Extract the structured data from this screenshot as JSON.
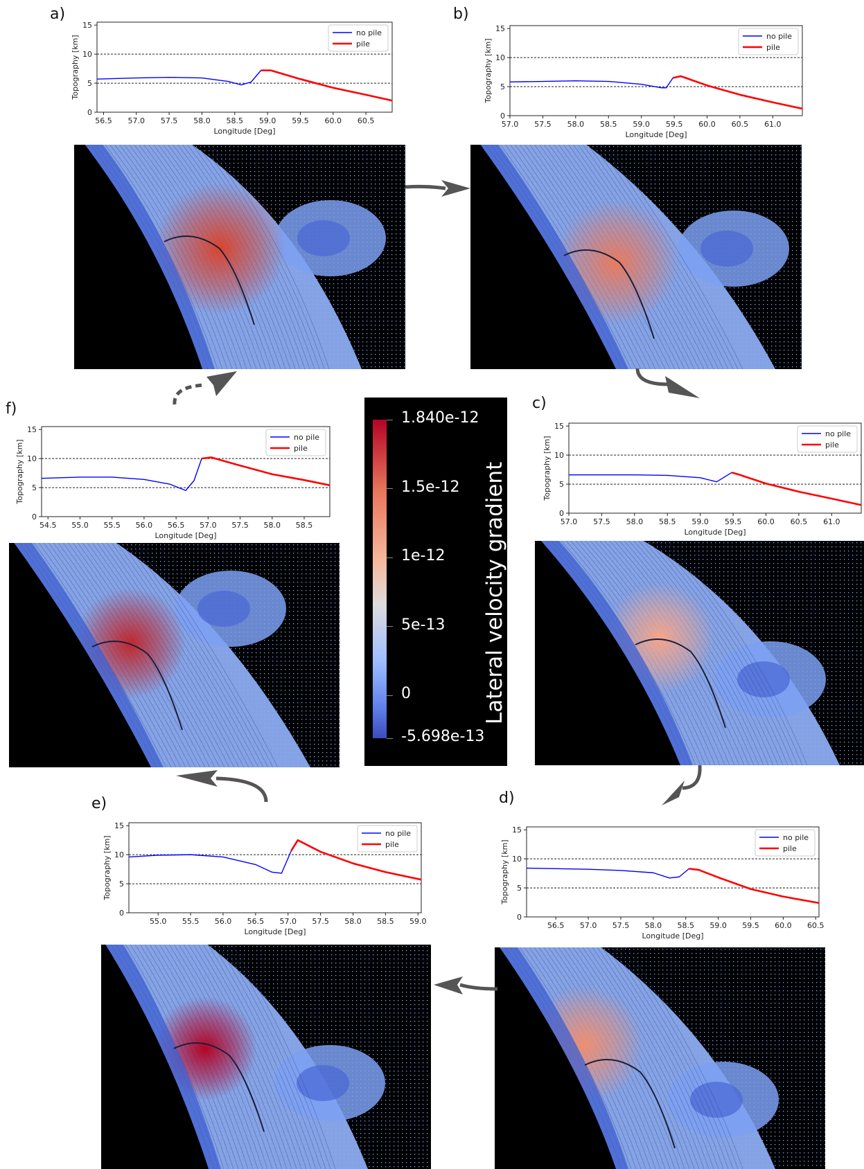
{
  "panel_letters": {
    "a": "a)",
    "b": "b)",
    "c": "c)",
    "d": "d)",
    "e": "e)",
    "f": "f)"
  },
  "colorbar": {
    "title": "Lateral velocity gradient",
    "ticks": [
      "1.840e-12",
      "1.5e-12",
      "1e-12",
      "5e-13",
      "0",
      "-5.698e-13"
    ],
    "colors": [
      "#b40426",
      "#e7745b",
      "#f7b89c",
      "#dddcdc",
      "#9dbdff",
      "#3b4cc0"
    ]
  },
  "series_colors": {
    "no pile": "#0000ff",
    "pile": "#ff0000"
  },
  "chart_data": [
    {
      "panel": "a)",
      "type": "line",
      "xlabel": "Longitude [Deg]",
      "ylabel": "Topography [km]",
      "xlim": [
        56.4,
        60.9
      ],
      "ylim": [
        0,
        15.5
      ],
      "xticks": [
        "56.5",
        "57.0",
        "57.5",
        "58.0",
        "58.5",
        "59.0",
        "59.5",
        "60.0",
        "60.5"
      ],
      "yticks": [
        "0",
        "5",
        "10",
        "15"
      ],
      "hlines": [
        5,
        10
      ],
      "legend": [
        "no pile",
        "pile"
      ],
      "series": [
        {
          "name": "no pile",
          "x": [
            56.4,
            57.0,
            57.5,
            58.0,
            58.4,
            58.6,
            58.75,
            58.9
          ],
          "y": [
            5.7,
            5.9,
            6.0,
            5.9,
            5.3,
            4.7,
            5.2,
            7.2
          ]
        },
        {
          "name": "pile",
          "x": [
            58.9,
            59.05,
            59.5,
            60.0,
            60.5,
            60.9
          ],
          "y": [
            7.2,
            7.2,
            5.7,
            4.2,
            3.0,
            2.0
          ]
        }
      ]
    },
    {
      "panel": "b)",
      "type": "line",
      "xlabel": "Longitude [Deg]",
      "ylabel": "Topography [km]",
      "xlim": [
        57.0,
        61.45
      ],
      "ylim": [
        0,
        15.5
      ],
      "xticks": [
        "57.0",
        "57.5",
        "58.0",
        "58.5",
        "59.0",
        "59.5",
        "60.0",
        "60.5",
        "61.0"
      ],
      "yticks": [
        "0",
        "5",
        "10",
        "15"
      ],
      "hlines": [
        5,
        10
      ],
      "legend": [
        "no pile",
        "pile"
      ],
      "series": [
        {
          "name": "no pile",
          "x": [
            57.0,
            57.5,
            58.0,
            58.5,
            59.0,
            59.3,
            59.38,
            59.48
          ],
          "y": [
            5.8,
            5.9,
            6.0,
            5.9,
            5.4,
            4.8,
            4.8,
            6.5
          ]
        },
        {
          "name": "pile",
          "x": [
            59.48,
            59.6,
            60.0,
            60.5,
            61.0,
            61.45
          ],
          "y": [
            6.5,
            6.8,
            5.2,
            3.6,
            2.3,
            1.2
          ]
        }
      ]
    },
    {
      "panel": "c)",
      "type": "line",
      "xlabel": "Longitude [Deg]",
      "ylabel": "Topography [km]",
      "xlim": [
        57.0,
        61.45
      ],
      "ylim": [
        0,
        15.5
      ],
      "xticks": [
        "57.0",
        "57.5",
        "58.0",
        "58.5",
        "59.0",
        "59.5",
        "60.0",
        "60.5",
        "61.0"
      ],
      "yticks": [
        "0",
        "5",
        "10",
        "15"
      ],
      "hlines": [
        5,
        10
      ],
      "legend": [
        "no pile",
        "pile"
      ],
      "series": [
        {
          "name": "no pile",
          "x": [
            57.0,
            57.5,
            58.0,
            58.5,
            59.0,
            59.25,
            59.48
          ],
          "y": [
            6.6,
            6.6,
            6.6,
            6.5,
            6.1,
            5.4,
            7.0
          ]
        },
        {
          "name": "pile",
          "x": [
            59.48,
            59.6,
            60.0,
            60.5,
            61.0,
            61.45
          ],
          "y": [
            7.0,
            6.6,
            5.1,
            3.7,
            2.5,
            1.4
          ]
        }
      ]
    },
    {
      "panel": "d)",
      "type": "line",
      "xlabel": "Longitude [Deg]",
      "ylabel": "Topography [km]",
      "xlim": [
        56.05,
        60.55
      ],
      "ylim": [
        0,
        15.5
      ],
      "xticks": [
        "56.5",
        "57.0",
        "57.5",
        "58.0",
        "58.5",
        "59.0",
        "59.5",
        "60.0",
        "60.5"
      ],
      "yticks": [
        "0",
        "5",
        "10",
        "15"
      ],
      "hlines": [
        5,
        10
      ],
      "legend": [
        "no pile",
        "pile"
      ],
      "series": [
        {
          "name": "no pile",
          "x": [
            56.05,
            57.0,
            57.5,
            58.0,
            58.25,
            58.4,
            58.55
          ],
          "y": [
            8.4,
            8.2,
            8.0,
            7.6,
            6.7,
            6.9,
            8.3
          ]
        },
        {
          "name": "pile",
          "x": [
            58.55,
            58.7,
            59.0,
            59.5,
            60.0,
            60.55
          ],
          "y": [
            8.3,
            8.1,
            6.8,
            4.8,
            3.5,
            2.4
          ]
        }
      ]
    },
    {
      "panel": "e)",
      "type": "line",
      "xlabel": "Longitude [Deg]",
      "ylabel": "Topography [km]",
      "xlim": [
        54.55,
        59.05
      ],
      "ylim": [
        0,
        15.5
      ],
      "xticks": [
        "55.0",
        "55.5",
        "56.0",
        "56.5",
        "57.0",
        "57.5",
        "58.0",
        "58.5",
        "59.0"
      ],
      "yticks": [
        "0",
        "5",
        "10",
        "15"
      ],
      "hlines": [
        5,
        10
      ],
      "legend": [
        "no pile",
        "pile"
      ],
      "series": [
        {
          "name": "no pile",
          "x": [
            54.55,
            55.0,
            55.5,
            56.0,
            56.5,
            56.75,
            56.9,
            57.05
          ],
          "y": [
            9.6,
            9.9,
            10.0,
            9.6,
            8.3,
            7.0,
            6.8,
            10.7
          ]
        },
        {
          "name": "pile",
          "x": [
            57.05,
            57.15,
            57.5,
            58.0,
            58.5,
            59.05
          ],
          "y": [
            10.7,
            12.5,
            10.5,
            8.5,
            7.0,
            5.7
          ]
        }
      ]
    },
    {
      "panel": "f)",
      "type": "line",
      "xlabel": "Longitude [Deg]",
      "ylabel": "Topography [km]",
      "xlim": [
        54.4,
        58.9
      ],
      "ylim": [
        0,
        15.5
      ],
      "xticks": [
        "54.5",
        "55.0",
        "55.5",
        "56.0",
        "56.5",
        "57.0",
        "57.5",
        "58.0",
        "58.5"
      ],
      "yticks": [
        "0",
        "5",
        "10",
        "15"
      ],
      "hlines": [
        5,
        10
      ],
      "legend": [
        "no pile",
        "pile"
      ],
      "series": [
        {
          "name": "no pile",
          "x": [
            54.4,
            55.0,
            55.5,
            56.0,
            56.4,
            56.65,
            56.78,
            56.9
          ],
          "y": [
            6.6,
            6.8,
            6.8,
            6.4,
            5.6,
            4.5,
            6.2,
            10.0
          ]
        },
        {
          "name": "pile",
          "x": [
            56.9,
            57.05,
            57.5,
            58.0,
            58.5,
            58.9
          ],
          "y": [
            10.0,
            10.2,
            8.8,
            7.3,
            6.3,
            5.4
          ]
        }
      ]
    }
  ]
}
